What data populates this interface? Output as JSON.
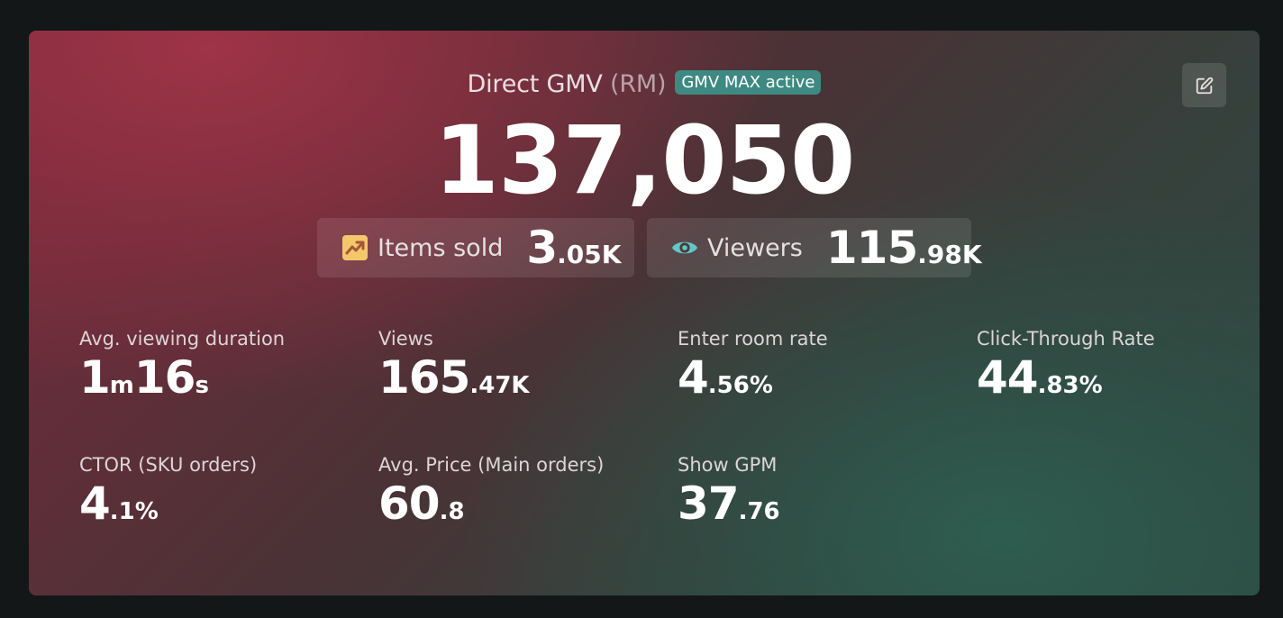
{
  "header": {
    "title": "Direct GMV",
    "unit": "(RM)",
    "badge": "GMV MAX active"
  },
  "gmv": {
    "value": "137,050"
  },
  "pills": {
    "items_sold": {
      "label": "Items sold",
      "value_main": "3",
      "value_small": ".05K",
      "icon": "trending-up-icon",
      "icon_color": "#f4c86a"
    },
    "viewers": {
      "label": "Viewers",
      "value_main": "115",
      "value_small": ".98K",
      "icon": "eye-icon",
      "icon_color": "#5fc9c6"
    }
  },
  "metrics": [
    {
      "label": "Avg. viewing duration",
      "parts": [
        "1",
        "m",
        "16",
        "s"
      ]
    },
    {
      "label": "Views",
      "main": "165",
      "small": ".47K"
    },
    {
      "label": "Enter room rate",
      "main": "4",
      "small": ".56%"
    },
    {
      "label": "Click-Through Rate",
      "main": "44",
      "small": ".83%"
    },
    {
      "label": "CTOR (SKU orders)",
      "main": "4",
      "small": ".1%"
    },
    {
      "label": "Avg. Price (Main orders)",
      "main": "60",
      "small": ".8"
    },
    {
      "label": "Show GPM",
      "main": "37",
      "small": ".76"
    }
  ],
  "colors": {
    "badge": "#3e8a82",
    "accent_red": "#a03448",
    "accent_green": "#2e5e50"
  }
}
